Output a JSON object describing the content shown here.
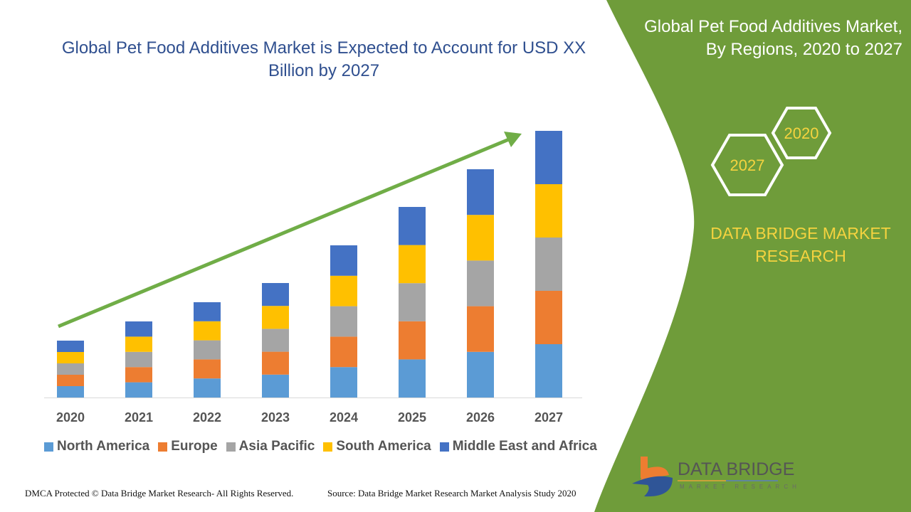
{
  "title": "Global Pet Food Additives Market is Expected to Account for USD XX Billion by 2027",
  "side_panel": {
    "title_line1": "Global Pet Food Additives Market,",
    "title_line2": "By Regions, 2020 to 2027",
    "hex_start": "2020",
    "hex_end": "2027",
    "brand_line1": "DATA BRIDGE MARKET",
    "brand_line2": "RESEARCH",
    "color": "#6f9c3a"
  },
  "logo": {
    "name": "DATA BRIDGE",
    "sub": "MARKET RESEARCH"
  },
  "footer": {
    "left": "DMCA Protected © Data Bridge Market Research- All Rights Reserved.",
    "right": "Source: Data Bridge Market Research Market Analysis Study 2020"
  },
  "chart_data": {
    "type": "bar",
    "stacked": true,
    "title": "Global Pet Food Additives Market is Expected to Account for USD XX Billion by 2027",
    "categories": [
      "2020",
      "2021",
      "2022",
      "2023",
      "2024",
      "2025",
      "2026",
      "2027"
    ],
    "series": [
      {
        "name": "North America",
        "color": "#5b9bd5",
        "values": [
          16,
          21.4,
          26.8,
          32.2,
          42.8,
          53.6,
          64.2,
          75
        ]
      },
      {
        "name": "Europe",
        "color": "#ed7d31",
        "values": [
          16,
          21.4,
          26.8,
          32.2,
          42.8,
          53.6,
          64.2,
          75
        ]
      },
      {
        "name": "Asia Pacific",
        "color": "#a5a5a5",
        "values": [
          16,
          21.4,
          26.8,
          32.2,
          42.8,
          53.6,
          64.2,
          75
        ]
      },
      {
        "name": "South America",
        "color": "#ffc000",
        "values": [
          16,
          21.4,
          26.8,
          32.2,
          42.8,
          53.6,
          64.2,
          75
        ]
      },
      {
        "name": "Middle East and Africa",
        "color": "#4472c4",
        "values": [
          16,
          21.4,
          26.8,
          32.2,
          42.8,
          53.6,
          64.2,
          75
        ]
      }
    ],
    "legend_position": "bottom",
    "y_axis_visible": false,
    "grid": false,
    "trend_arrow_color": "#70ad47"
  }
}
